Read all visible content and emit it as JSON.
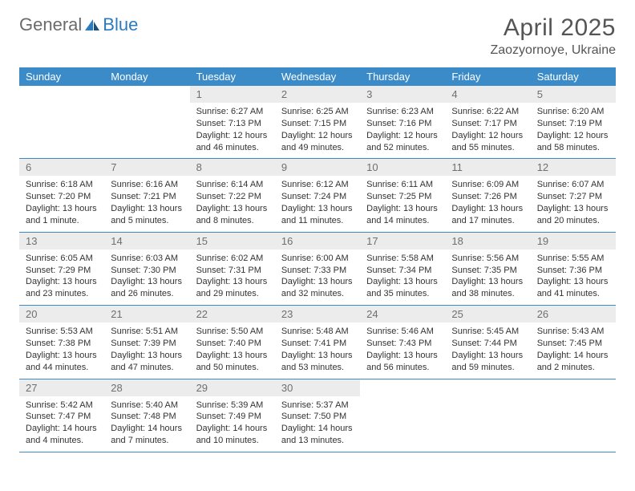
{
  "brand": {
    "general": "General",
    "blue": "Blue"
  },
  "title": "April 2025",
  "location": "Zaozyornoye, Ukraine",
  "colors": {
    "header_bg": "#3b8bc9",
    "header_text": "#ffffff",
    "daynum_bg": "#ececec",
    "daynum_text": "#6f6f6f",
    "border": "#3b8bc9",
    "logo_gray": "#6b6b6b",
    "logo_blue": "#2b7bbf"
  },
  "weekdays": [
    "Sunday",
    "Monday",
    "Tuesday",
    "Wednesday",
    "Thursday",
    "Friday",
    "Saturday"
  ],
  "weeks": [
    [
      null,
      null,
      {
        "n": "1",
        "sr": "Sunrise: 6:27 AM",
        "ss": "Sunset: 7:13 PM",
        "dl": "Daylight: 12 hours and 46 minutes."
      },
      {
        "n": "2",
        "sr": "Sunrise: 6:25 AM",
        "ss": "Sunset: 7:15 PM",
        "dl": "Daylight: 12 hours and 49 minutes."
      },
      {
        "n": "3",
        "sr": "Sunrise: 6:23 AM",
        "ss": "Sunset: 7:16 PM",
        "dl": "Daylight: 12 hours and 52 minutes."
      },
      {
        "n": "4",
        "sr": "Sunrise: 6:22 AM",
        "ss": "Sunset: 7:17 PM",
        "dl": "Daylight: 12 hours and 55 minutes."
      },
      {
        "n": "5",
        "sr": "Sunrise: 6:20 AM",
        "ss": "Sunset: 7:19 PM",
        "dl": "Daylight: 12 hours and 58 minutes."
      }
    ],
    [
      {
        "n": "6",
        "sr": "Sunrise: 6:18 AM",
        "ss": "Sunset: 7:20 PM",
        "dl": "Daylight: 13 hours and 1 minute."
      },
      {
        "n": "7",
        "sr": "Sunrise: 6:16 AM",
        "ss": "Sunset: 7:21 PM",
        "dl": "Daylight: 13 hours and 5 minutes."
      },
      {
        "n": "8",
        "sr": "Sunrise: 6:14 AM",
        "ss": "Sunset: 7:22 PM",
        "dl": "Daylight: 13 hours and 8 minutes."
      },
      {
        "n": "9",
        "sr": "Sunrise: 6:12 AM",
        "ss": "Sunset: 7:24 PM",
        "dl": "Daylight: 13 hours and 11 minutes."
      },
      {
        "n": "10",
        "sr": "Sunrise: 6:11 AM",
        "ss": "Sunset: 7:25 PM",
        "dl": "Daylight: 13 hours and 14 minutes."
      },
      {
        "n": "11",
        "sr": "Sunrise: 6:09 AM",
        "ss": "Sunset: 7:26 PM",
        "dl": "Daylight: 13 hours and 17 minutes."
      },
      {
        "n": "12",
        "sr": "Sunrise: 6:07 AM",
        "ss": "Sunset: 7:27 PM",
        "dl": "Daylight: 13 hours and 20 minutes."
      }
    ],
    [
      {
        "n": "13",
        "sr": "Sunrise: 6:05 AM",
        "ss": "Sunset: 7:29 PM",
        "dl": "Daylight: 13 hours and 23 minutes."
      },
      {
        "n": "14",
        "sr": "Sunrise: 6:03 AM",
        "ss": "Sunset: 7:30 PM",
        "dl": "Daylight: 13 hours and 26 minutes."
      },
      {
        "n": "15",
        "sr": "Sunrise: 6:02 AM",
        "ss": "Sunset: 7:31 PM",
        "dl": "Daylight: 13 hours and 29 minutes."
      },
      {
        "n": "16",
        "sr": "Sunrise: 6:00 AM",
        "ss": "Sunset: 7:33 PM",
        "dl": "Daylight: 13 hours and 32 minutes."
      },
      {
        "n": "17",
        "sr": "Sunrise: 5:58 AM",
        "ss": "Sunset: 7:34 PM",
        "dl": "Daylight: 13 hours and 35 minutes."
      },
      {
        "n": "18",
        "sr": "Sunrise: 5:56 AM",
        "ss": "Sunset: 7:35 PM",
        "dl": "Daylight: 13 hours and 38 minutes."
      },
      {
        "n": "19",
        "sr": "Sunrise: 5:55 AM",
        "ss": "Sunset: 7:36 PM",
        "dl": "Daylight: 13 hours and 41 minutes."
      }
    ],
    [
      {
        "n": "20",
        "sr": "Sunrise: 5:53 AM",
        "ss": "Sunset: 7:38 PM",
        "dl": "Daylight: 13 hours and 44 minutes."
      },
      {
        "n": "21",
        "sr": "Sunrise: 5:51 AM",
        "ss": "Sunset: 7:39 PM",
        "dl": "Daylight: 13 hours and 47 minutes."
      },
      {
        "n": "22",
        "sr": "Sunrise: 5:50 AM",
        "ss": "Sunset: 7:40 PM",
        "dl": "Daylight: 13 hours and 50 minutes."
      },
      {
        "n": "23",
        "sr": "Sunrise: 5:48 AM",
        "ss": "Sunset: 7:41 PM",
        "dl": "Daylight: 13 hours and 53 minutes."
      },
      {
        "n": "24",
        "sr": "Sunrise: 5:46 AM",
        "ss": "Sunset: 7:43 PM",
        "dl": "Daylight: 13 hours and 56 minutes."
      },
      {
        "n": "25",
        "sr": "Sunrise: 5:45 AM",
        "ss": "Sunset: 7:44 PM",
        "dl": "Daylight: 13 hours and 59 minutes."
      },
      {
        "n": "26",
        "sr": "Sunrise: 5:43 AM",
        "ss": "Sunset: 7:45 PM",
        "dl": "Daylight: 14 hours and 2 minutes."
      }
    ],
    [
      {
        "n": "27",
        "sr": "Sunrise: 5:42 AM",
        "ss": "Sunset: 7:47 PM",
        "dl": "Daylight: 14 hours and 4 minutes."
      },
      {
        "n": "28",
        "sr": "Sunrise: 5:40 AM",
        "ss": "Sunset: 7:48 PM",
        "dl": "Daylight: 14 hours and 7 minutes."
      },
      {
        "n": "29",
        "sr": "Sunrise: 5:39 AM",
        "ss": "Sunset: 7:49 PM",
        "dl": "Daylight: 14 hours and 10 minutes."
      },
      {
        "n": "30",
        "sr": "Sunrise: 5:37 AM",
        "ss": "Sunset: 7:50 PM",
        "dl": "Daylight: 14 hours and 13 minutes."
      },
      null,
      null,
      null
    ]
  ]
}
